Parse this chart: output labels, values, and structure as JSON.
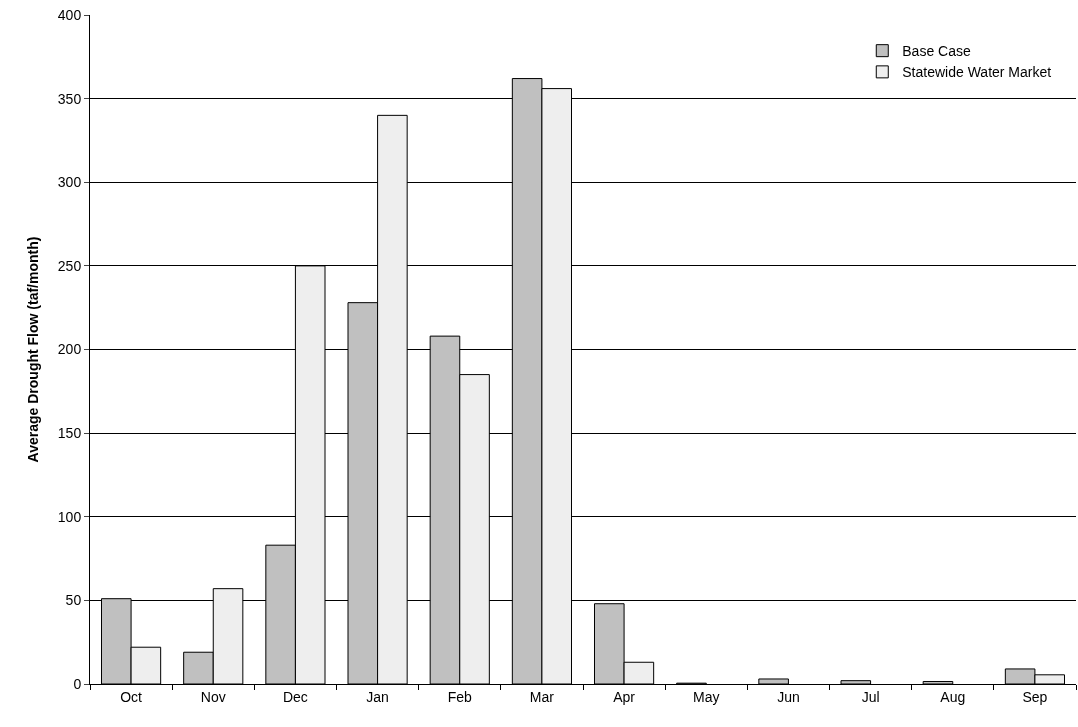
{
  "chart_data": {
    "type": "bar",
    "ylabel": "Average Drought Flow (taf/month)",
    "categories": [
      "Oct",
      "Nov",
      "Dec",
      "Jan",
      "Feb",
      "Mar",
      "Apr",
      "May",
      "Jun",
      "Jul",
      "Aug",
      "Sep"
    ],
    "series": [
      {
        "name": "Base Case",
        "color": "#c0c0c0",
        "values": [
          51,
          19,
          83,
          228,
          208,
          362,
          48,
          0.5,
          3,
          2,
          1.5,
          9
        ]
      },
      {
        "name": "Statewide Water Market",
        "color": "#eeeeee",
        "values": [
          22,
          57,
          250,
          340,
          185,
          356,
          13,
          0,
          0,
          0,
          0,
          5.5
        ]
      }
    ],
    "ylim": [
      0,
      400
    ],
    "yticks": [
      0,
      50,
      100,
      150,
      200,
      250,
      300,
      350,
      400
    ],
    "grid": "y",
    "legend": "top right"
  }
}
